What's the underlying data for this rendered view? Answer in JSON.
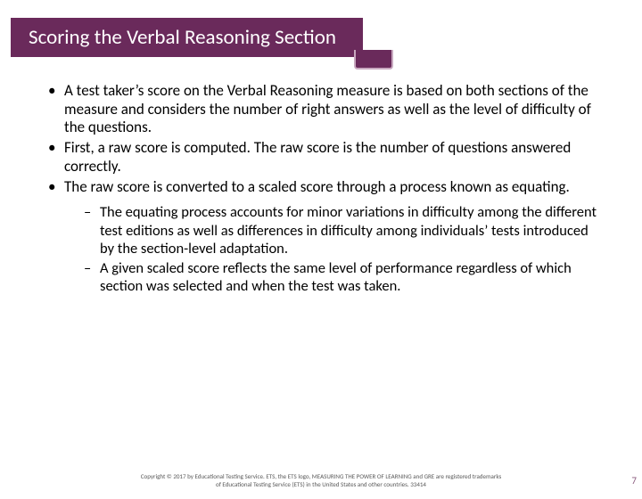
{
  "title": "Scoring the Verbal Reasoning Section",
  "colors": {
    "accent": "#6a2a5b",
    "accent_border": "#c8a8bf",
    "text": "#000000",
    "footer_text": "#595959",
    "page_num": "#8a5a7d",
    "background": "#ffffff"
  },
  "bullets": {
    "b1": "A test taker’s score on the Verbal Reasoning measure is based on both sections of the measure and considers the number of right answers as well as the level of difficulty of the questions.",
    "b2": "First, a raw score is computed. The raw score is the number of questions answered correctly.",
    "b3": "The raw score is converted to a scaled score through a process known as equating.",
    "sub1": "The equating process accounts for minor variations in difficulty among the different test editions as well as differences in difficulty among individuals’ tests introduced by the section-level adaptation.",
    "sub2": "A given scaled score reflects the same level of performance regardless of which section was selected and when the test was taken."
  },
  "footer": {
    "line1": "Copyright © 2017 by Educational Testing Service. ETS, the ETS logo, MEASURING THE POWER OF LEARNING and GRE are registered trademarks",
    "line2": "of Educational Testing Service (ETS) in the United States and other countries. 33414"
  },
  "page_number": "7"
}
